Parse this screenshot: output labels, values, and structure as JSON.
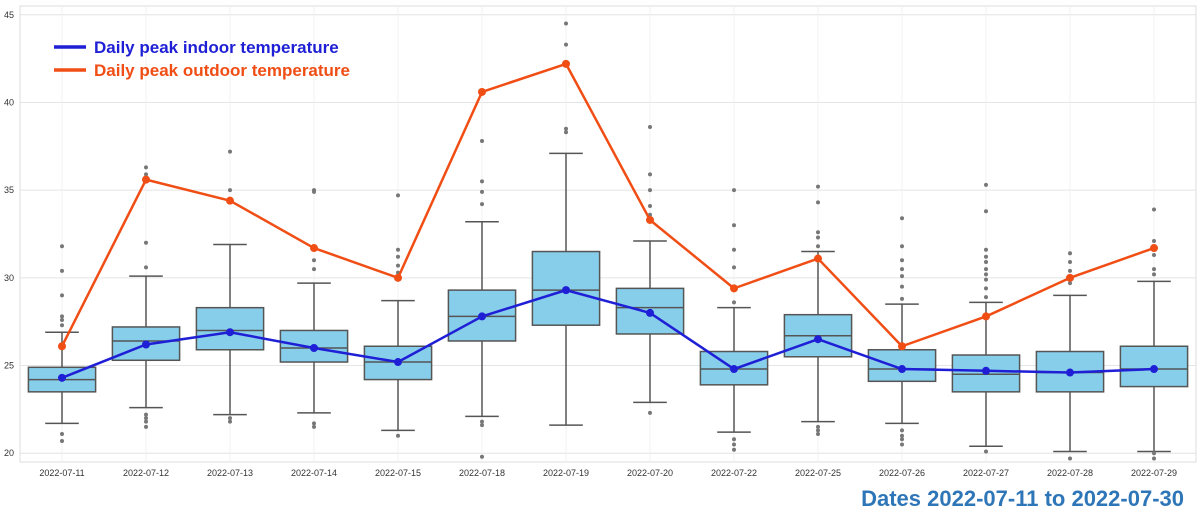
{
  "chart_data": {
    "type": "box",
    "title": "",
    "xlabel": "Dates 2022-07-11 to 2022-07-30",
    "ylabel": "",
    "ylim": [
      19.5,
      45.5
    ],
    "y_ticks": [
      20,
      25,
      30,
      35,
      40,
      45
    ],
    "grid": true,
    "legend_position": "top-left",
    "categories": [
      "2022-07-11",
      "2022-07-12",
      "2022-07-13",
      "2022-07-14",
      "2022-07-15",
      "2022-07-18",
      "2022-07-19",
      "2022-07-20",
      "2022-07-22",
      "2022-07-25",
      "2022-07-26",
      "2022-07-27",
      "2022-07-28",
      "2022-07-29"
    ],
    "boxes": [
      {
        "whisker_low": 21.7,
        "q1": 23.5,
        "median": 24.2,
        "q3": 24.9,
        "whisker_high": 26.9,
        "outliers": [
          20.7,
          21.1,
          27.3,
          27.6,
          27.8,
          29.0,
          30.4,
          31.8
        ]
      },
      {
        "whisker_low": 22.6,
        "q1": 25.3,
        "median": 26.4,
        "q3": 27.2,
        "whisker_high": 30.1,
        "outliers": [
          21.5,
          21.8,
          22.0,
          22.2,
          30.6,
          32.0,
          35.9,
          36.3
        ]
      },
      {
        "whisker_low": 22.2,
        "q1": 25.9,
        "median": 27.0,
        "q3": 28.3,
        "whisker_high": 31.9,
        "outliers": [
          21.8,
          22.0,
          34.4,
          35.0,
          37.2
        ]
      },
      {
        "whisker_low": 22.3,
        "q1": 25.2,
        "median": 26.0,
        "q3": 27.0,
        "whisker_high": 29.7,
        "outliers": [
          21.5,
          21.7,
          30.5,
          31.0,
          34.9,
          35.0
        ]
      },
      {
        "whisker_low": 21.3,
        "q1": 24.2,
        "median": 25.2,
        "q3": 26.1,
        "whisker_high": 28.7,
        "outliers": [
          21.0,
          29.9,
          30.3,
          30.7,
          31.2,
          31.6,
          34.7
        ]
      },
      {
        "whisker_low": 22.1,
        "q1": 26.4,
        "median": 27.8,
        "q3": 29.3,
        "whisker_high": 33.2,
        "outliers": [
          19.8,
          21.6,
          21.8,
          34.2,
          34.9,
          35.5,
          37.8
        ]
      },
      {
        "whisker_low": 21.6,
        "q1": 27.3,
        "median": 29.3,
        "q3": 31.5,
        "whisker_high": 37.1,
        "outliers": [
          38.3,
          38.5,
          43.3,
          44.5
        ]
      },
      {
        "whisker_low": 22.9,
        "q1": 26.8,
        "median": 28.3,
        "q3": 29.4,
        "whisker_high": 32.1,
        "outliers": [
          22.3,
          33.6,
          34.1,
          35.0,
          35.9,
          38.6
        ]
      },
      {
        "whisker_low": 21.2,
        "q1": 23.9,
        "median": 24.8,
        "q3": 25.8,
        "whisker_high": 28.3,
        "outliers": [
          20.2,
          20.5,
          20.8,
          28.6,
          29.5,
          30.6,
          31.6,
          33.0,
          35.0
        ]
      },
      {
        "whisker_low": 21.8,
        "q1": 25.5,
        "median": 26.7,
        "q3": 27.9,
        "whisker_high": 31.5,
        "outliers": [
          21.1,
          21.3,
          21.5,
          31.8,
          32.3,
          32.6,
          34.3,
          35.2
        ]
      },
      {
        "whisker_low": 21.7,
        "q1": 24.1,
        "median": 24.8,
        "q3": 25.9,
        "whisker_high": 28.5,
        "outliers": [
          20.5,
          20.8,
          21.0,
          21.3,
          28.8,
          29.5,
          30.1,
          30.5,
          31.0,
          31.8,
          33.4
        ]
      },
      {
        "whisker_low": 20.4,
        "q1": 23.5,
        "median": 24.5,
        "q3": 25.6,
        "whisker_high": 28.6,
        "outliers": [
          20.1,
          28.9,
          29.4,
          29.9,
          30.2,
          30.5,
          30.9,
          31.2,
          31.6,
          33.8,
          35.3
        ]
      },
      {
        "whisker_low": 20.1,
        "q1": 23.5,
        "median": 24.6,
        "q3": 25.8,
        "whisker_high": 29.0,
        "outliers": [
          19.7,
          29.7,
          30.4,
          30.9,
          31.4
        ]
      },
      {
        "whisker_low": 20.1,
        "q1": 23.8,
        "median": 24.8,
        "q3": 26.1,
        "whisker_high": 29.8,
        "outliers": [
          19.7,
          20.0,
          30.2,
          30.5,
          31.3,
          32.1,
          33.9
        ]
      }
    ],
    "series": [
      {
        "name": "Daily peak indoor temperature",
        "color": "#1f1fd6",
        "values": [
          24.3,
          26.2,
          26.9,
          26.0,
          25.2,
          27.8,
          29.3,
          28.0,
          24.8,
          26.5,
          24.8,
          24.7,
          24.6,
          24.8
        ]
      },
      {
        "name": "Daily peak outdoor temperature",
        "color": "#f04e15",
        "values": [
          26.1,
          35.6,
          34.4,
          31.7,
          30.0,
          40.6,
          42.2,
          33.3,
          29.4,
          31.1,
          26.1,
          27.8,
          30.0,
          31.7
        ]
      }
    ],
    "box_fill_color": "#87ceeb",
    "box_edge_color": "#555555",
    "xlabel_color": "#2f76b8"
  }
}
